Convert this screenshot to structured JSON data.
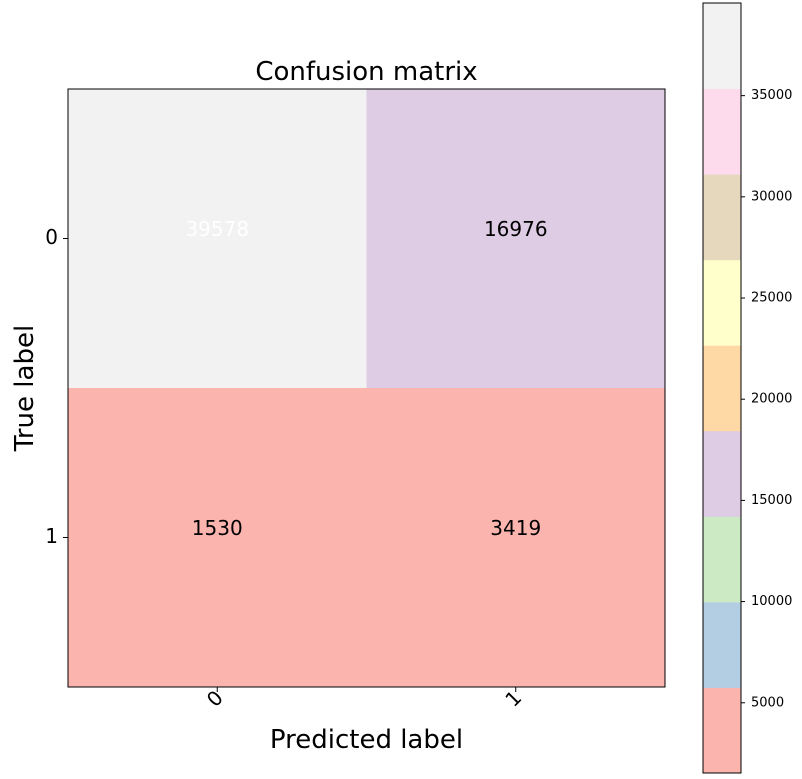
{
  "chart_data": {
    "type": "heatmap",
    "title": "Confusion matrix",
    "xlabel": "Predicted label",
    "ylabel": "True label",
    "x_categories": [
      "0",
      "1"
    ],
    "y_categories": [
      "0",
      "1"
    ],
    "values": [
      [
        39578,
        16976
      ],
      [
        1530,
        3419
      ]
    ],
    "colormap": "Pastel1",
    "colorbar": {
      "vmin": 1530,
      "vmax": 39578,
      "ticks": [
        5000,
        10000,
        15000,
        20000,
        25000,
        30000,
        35000
      ],
      "colors": [
        "#fbb4ae",
        "#b3cde3",
        "#ccebc5",
        "#decbe4",
        "#fed9a6",
        "#ffffcc",
        "#e5d8bd",
        "#fddaec",
        "#f2f2f2"
      ]
    },
    "text_colors": {
      "light": "#ffffff",
      "dark": "#000000"
    }
  }
}
